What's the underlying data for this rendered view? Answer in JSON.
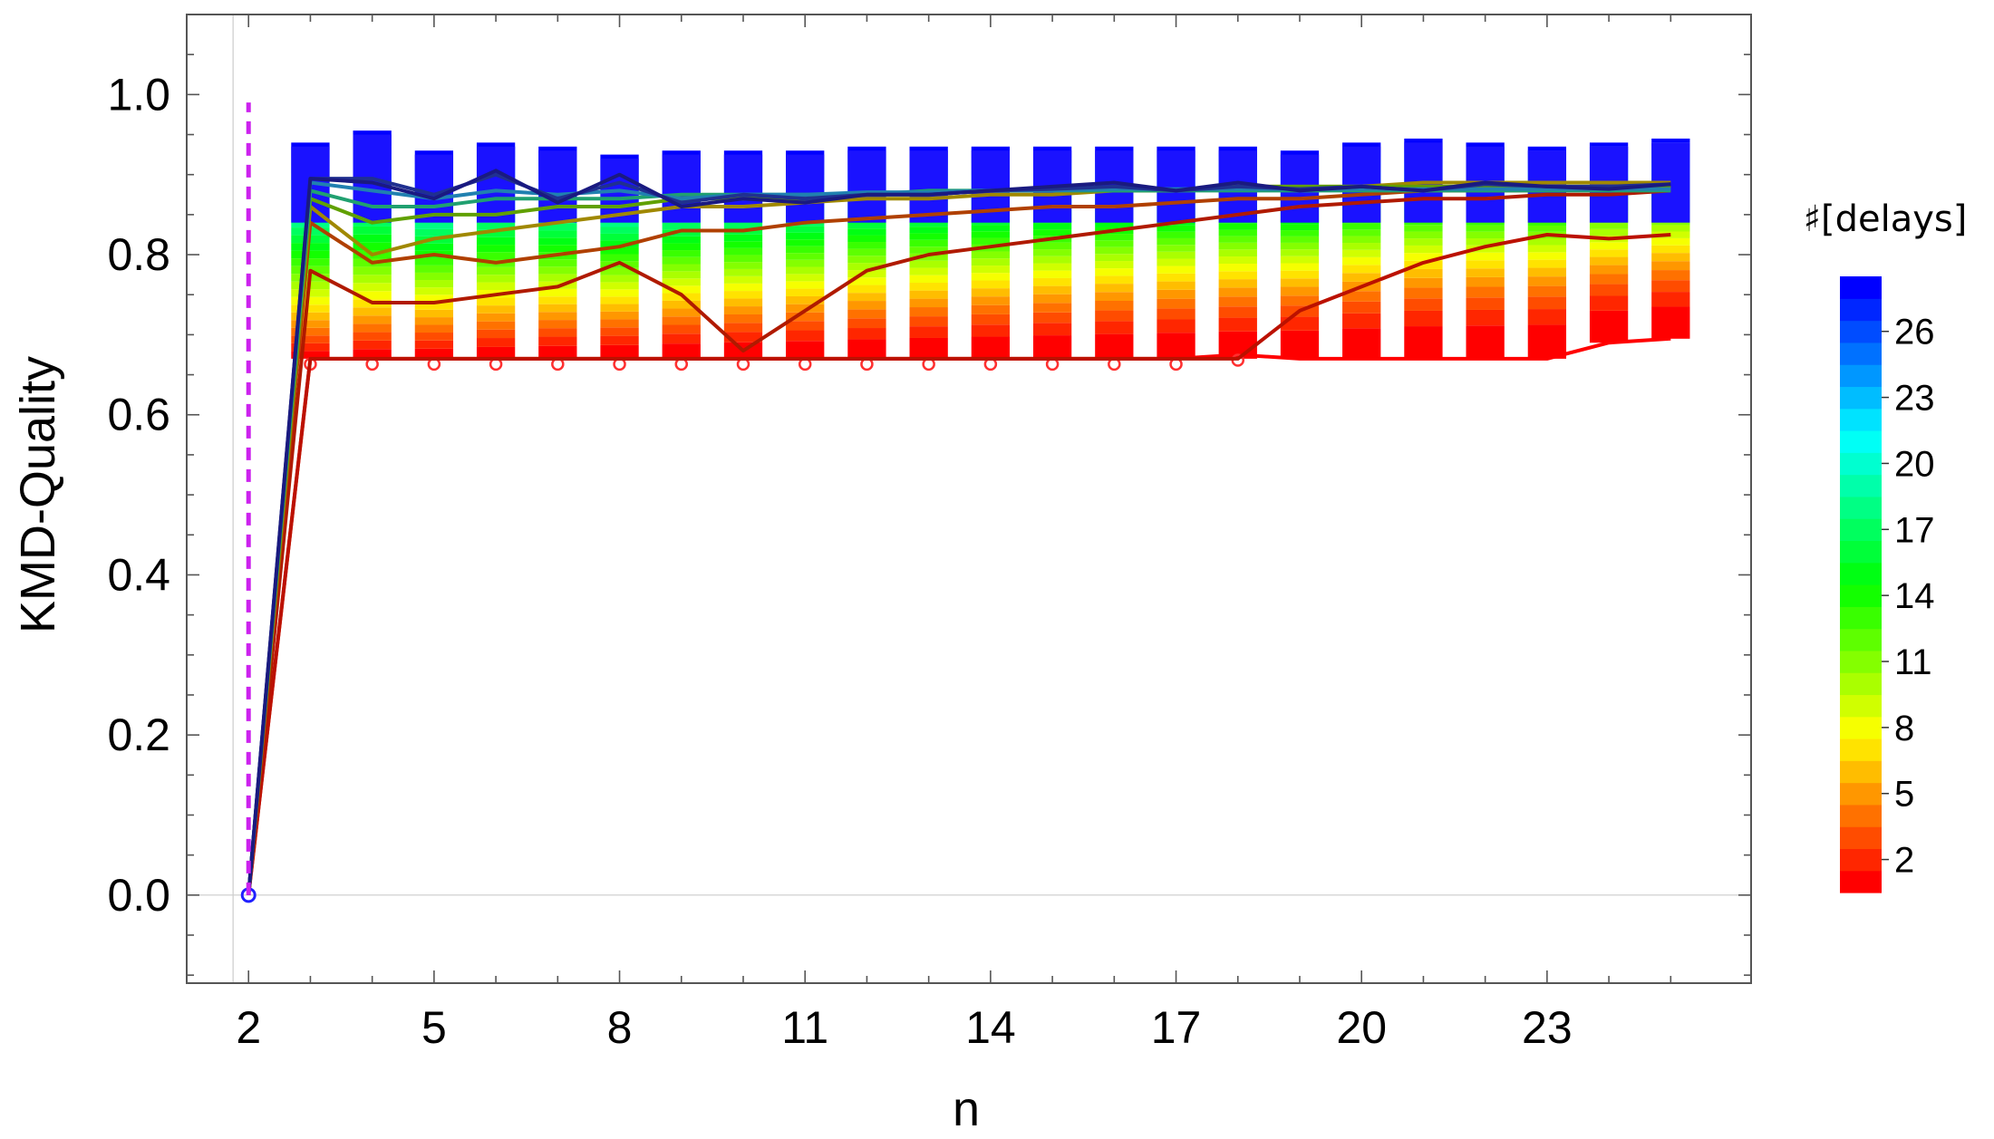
{
  "chart_data": {
    "type": "bar",
    "xlabel": "n",
    "ylabel": "KMD-Quality",
    "xlim": [
      1,
      26.3
    ],
    "ylim": [
      -0.11,
      1.1
    ],
    "x_ticks": [
      2,
      5,
      8,
      11,
      14,
      17,
      20,
      23
    ],
    "y_ticks": [
      0.0,
      0.2,
      0.4,
      0.6,
      0.8,
      1.0
    ],
    "y_tick_labels": [
      "0.0",
      "0.2",
      "0.4",
      "0.6",
      "0.8",
      "1.0"
    ],
    "frame": true,
    "minor_ticks": true,
    "color_scale": "rainbow",
    "legend": {
      "title": "♯[delays]",
      "placement": "right",
      "range": [
        1,
        28
      ],
      "ticks": [
        2,
        5,
        8,
        11,
        14,
        17,
        20,
        23,
        26
      ],
      "tick_labels": [
        "2",
        "5",
        "8",
        "11",
        "14",
        "17",
        "20",
        "23",
        "26"
      ]
    },
    "reference_line": {
      "x": 2,
      "y_range": [
        0,
        0.99
      ],
      "style": "dashed",
      "color": "#cc22ee"
    },
    "stacked_quality_bars": [
      {
        "n": 3,
        "lo": 0.67,
        "hi": 0.94
      },
      {
        "n": 4,
        "lo": 0.67,
        "hi": 0.955
      },
      {
        "n": 5,
        "lo": 0.67,
        "hi": 0.93
      },
      {
        "n": 6,
        "lo": 0.67,
        "hi": 0.94
      },
      {
        "n": 7,
        "lo": 0.67,
        "hi": 0.935
      },
      {
        "n": 8,
        "lo": 0.67,
        "hi": 0.925
      },
      {
        "n": 9,
        "lo": 0.67,
        "hi": 0.93
      },
      {
        "n": 10,
        "lo": 0.67,
        "hi": 0.93
      },
      {
        "n": 11,
        "lo": 0.67,
        "hi": 0.93
      },
      {
        "n": 12,
        "lo": 0.67,
        "hi": 0.935
      },
      {
        "n": 13,
        "lo": 0.67,
        "hi": 0.935
      },
      {
        "n": 14,
        "lo": 0.67,
        "hi": 0.935
      },
      {
        "n": 15,
        "lo": 0.67,
        "hi": 0.935
      },
      {
        "n": 16,
        "lo": 0.67,
        "hi": 0.935
      },
      {
        "n": 17,
        "lo": 0.67,
        "hi": 0.935
      },
      {
        "n": 18,
        "lo": 0.67,
        "hi": 0.935
      },
      {
        "n": 19,
        "lo": 0.67,
        "hi": 0.93
      },
      {
        "n": 20,
        "lo": 0.67,
        "hi": 0.94
      },
      {
        "n": 21,
        "lo": 0.67,
        "hi": 0.945
      },
      {
        "n": 22,
        "lo": 0.67,
        "hi": 0.94
      },
      {
        "n": 23,
        "lo": 0.67,
        "hi": 0.935
      },
      {
        "n": 24,
        "lo": 0.69,
        "hi": 0.94
      },
      {
        "n": 25,
        "lo": 0.695,
        "hi": 0.945
      }
    ],
    "series": [
      {
        "delays": 1,
        "color": "#ff0000",
        "markers": "open-circle",
        "x": [
          2,
          3,
          4,
          5,
          6,
          7,
          8,
          9,
          10,
          11,
          12,
          13,
          14,
          15,
          16,
          17,
          18,
          19,
          20,
          21,
          22,
          23,
          24,
          25
        ],
        "y": [
          0.0,
          0.67,
          0.67,
          0.67,
          0.67,
          0.67,
          0.67,
          0.67,
          0.67,
          0.67,
          0.67,
          0.67,
          0.67,
          0.67,
          0.67,
          0.67,
          0.675,
          0.67,
          0.67,
          0.67,
          0.67,
          0.67,
          0.69,
          0.695
        ]
      },
      {
        "delays": 2,
        "color": "#bb1100",
        "x": [
          2,
          3,
          4,
          5,
          6,
          7,
          8,
          9,
          10,
          11,
          12,
          13,
          14,
          15,
          16,
          17,
          18,
          19,
          20,
          21,
          22,
          23,
          24,
          25
        ],
        "y": [
          0.0,
          0.67,
          0.67,
          0.67,
          0.67,
          0.67,
          0.67,
          0.67,
          0.67,
          0.67,
          0.67,
          0.67,
          0.67,
          0.67,
          0.67,
          0.67,
          0.67,
          0.73,
          0.76,
          0.79,
          0.81,
          0.825,
          0.82,
          0.825
        ]
      },
      {
        "delays": 3,
        "color": "#b01a00",
        "x": [
          2,
          3,
          4,
          5,
          6,
          7,
          8,
          9,
          10,
          11,
          12,
          13,
          14,
          15,
          16,
          17,
          18,
          19,
          20,
          21,
          22,
          23,
          24,
          25
        ],
        "y": [
          0.0,
          0.78,
          0.74,
          0.74,
          0.75,
          0.76,
          0.79,
          0.75,
          0.68,
          0.73,
          0.78,
          0.8,
          0.81,
          0.82,
          0.83,
          0.84,
          0.85,
          0.86,
          0.865,
          0.87,
          0.87,
          0.875,
          0.875,
          0.88
        ]
      },
      {
        "delays": 5,
        "color": "#b04000",
        "x": [
          2,
          3,
          4,
          5,
          6,
          7,
          8,
          9,
          10,
          11,
          12,
          13,
          14,
          15,
          16,
          17,
          18,
          19,
          20,
          21,
          22,
          23,
          24,
          25
        ],
        "y": [
          0.0,
          0.84,
          0.79,
          0.8,
          0.79,
          0.8,
          0.81,
          0.83,
          0.83,
          0.84,
          0.845,
          0.85,
          0.855,
          0.86,
          0.86,
          0.865,
          0.87,
          0.87,
          0.875,
          0.88,
          0.88,
          0.88,
          0.885,
          0.885
        ]
      },
      {
        "delays": 8,
        "color": "#a08800",
        "x": [
          2,
          3,
          4,
          5,
          6,
          7,
          8,
          9,
          10,
          11,
          12,
          13,
          14,
          15,
          16,
          17,
          18,
          19,
          20,
          21,
          22,
          23,
          24,
          25
        ],
        "y": [
          0.0,
          0.86,
          0.8,
          0.82,
          0.83,
          0.84,
          0.85,
          0.86,
          0.86,
          0.865,
          0.87,
          0.87,
          0.875,
          0.875,
          0.88,
          0.88,
          0.885,
          0.885,
          0.885,
          0.89,
          0.89,
          0.89,
          0.89,
          0.89
        ]
      },
      {
        "delays": 12,
        "color": "#60a000",
        "x": [
          2,
          3,
          4,
          5,
          6,
          7,
          8,
          9,
          10,
          11,
          12,
          13,
          14,
          15,
          16,
          17,
          18,
          19,
          20,
          21,
          22,
          23,
          24,
          25
        ],
        "y": [
          0.0,
          0.87,
          0.84,
          0.85,
          0.85,
          0.86,
          0.86,
          0.87,
          0.87,
          0.87,
          0.875,
          0.875,
          0.88,
          0.88,
          0.88,
          0.88,
          0.885,
          0.885,
          0.885,
          0.885,
          0.885,
          0.885,
          0.885,
          0.885
        ]
      },
      {
        "delays": 16,
        "color": "#20a070",
        "x": [
          2,
          3,
          4,
          5,
          6,
          7,
          8,
          9,
          10,
          11,
          12,
          13,
          14,
          15,
          16,
          17,
          18,
          19,
          20,
          21,
          22,
          23,
          24,
          25
        ],
        "y": [
          0.0,
          0.88,
          0.86,
          0.86,
          0.87,
          0.87,
          0.87,
          0.875,
          0.875,
          0.875,
          0.875,
          0.88,
          0.88,
          0.88,
          0.88,
          0.88,
          0.88,
          0.88,
          0.88,
          0.88,
          0.88,
          0.88,
          0.88,
          0.88
        ]
      },
      {
        "delays": 20,
        "color": "#2080b0",
        "x": [
          2,
          3,
          4,
          5,
          6,
          7,
          8,
          9,
          10,
          11,
          12,
          13,
          14,
          15,
          16,
          17,
          18,
          19,
          20,
          21,
          22,
          23,
          24,
          25
        ],
        "y": [
          0.0,
          0.89,
          0.88,
          0.87,
          0.88,
          0.875,
          0.88,
          0.87,
          0.875,
          0.875,
          0.878,
          0.878,
          0.88,
          0.88,
          0.882,
          0.882,
          0.882,
          0.882,
          0.882,
          0.882,
          0.882,
          0.882,
          0.882,
          0.882
        ]
      },
      {
        "delays": 24,
        "color": "#203090",
        "x": [
          2,
          3,
          4,
          5,
          6,
          7,
          8,
          9,
          10,
          11,
          12,
          13,
          14,
          15,
          16,
          17,
          18,
          19,
          20,
          21,
          22,
          23,
          24,
          25
        ],
        "y": [
          0.0,
          0.895,
          0.895,
          0.875,
          0.9,
          0.87,
          0.89,
          0.865,
          0.875,
          0.87,
          0.875,
          0.875,
          0.88,
          0.882,
          0.885,
          0.88,
          0.885,
          0.882,
          0.885,
          0.88,
          0.888,
          0.885,
          0.885,
          0.888
        ]
      },
      {
        "delays": 28,
        "color": "#1a1a80",
        "markers": "open-circle-at-start",
        "x": [
          2,
          3,
          4,
          5,
          6,
          7,
          8,
          9,
          10,
          11,
          12,
          13,
          14,
          15,
          16,
          17,
          18,
          19,
          20,
          21,
          22,
          23,
          24,
          25
        ],
        "y": [
          0.0,
          0.895,
          0.89,
          0.87,
          0.905,
          0.865,
          0.9,
          0.86,
          0.87,
          0.865,
          0.875,
          0.875,
          0.88,
          0.885,
          0.89,
          0.88,
          0.89,
          0.88,
          0.885,
          0.88,
          0.89,
          0.885,
          0.882,
          0.888
        ]
      }
    ]
  }
}
